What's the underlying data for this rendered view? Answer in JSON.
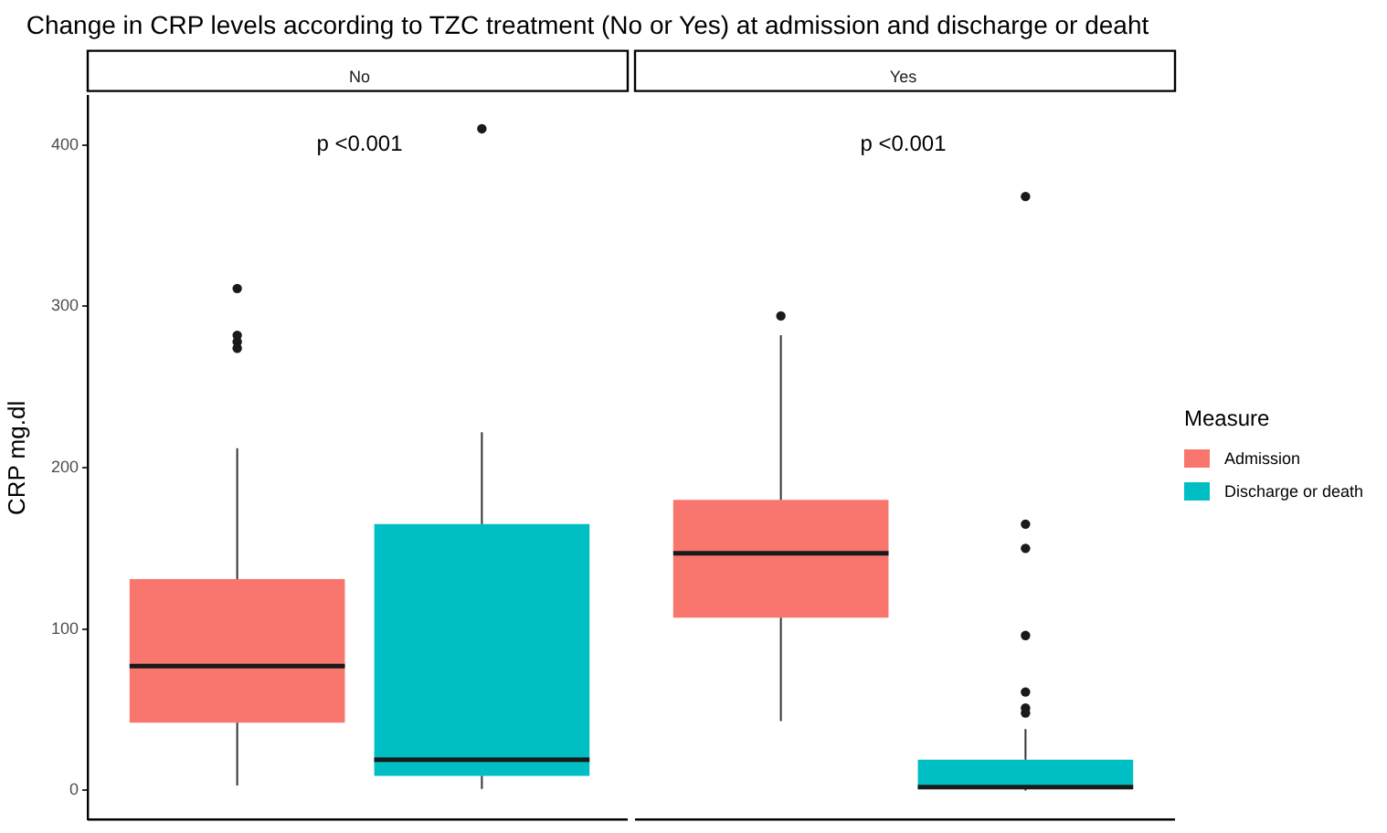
{
  "chart_data": {
    "type": "box",
    "title": "Change in CRP levels according to TZC treatment (No or Yes) at admission and discharge or deaht",
    "ylabel": "CRP mg.dl",
    "categories": [
      "No",
      "Yes"
    ],
    "ylim": [
      -18,
      430
    ],
    "yticks": [
      0,
      100,
      200,
      300,
      400
    ],
    "grid": false,
    "legend": "right",
    "legend_title": "Measure",
    "annotations": [
      "p <0.001",
      "p <0.001"
    ],
    "series": [
      {
        "name": "Admission",
        "color": "#f8766d",
        "boxes": [
          {
            "low": 3,
            "q1": 42,
            "median": 77,
            "q3": 131,
            "high": 212,
            "outliers": [
              311,
              282,
              278,
              274
            ]
          },
          {
            "low": 43,
            "q1": 107,
            "median": 147,
            "q3": 180,
            "high": 282,
            "outliers": [
              294
            ]
          }
        ]
      },
      {
        "name": "Discharge or death",
        "color": "#00bfc4",
        "boxes": [
          {
            "low": 1,
            "q1": 9,
            "median": 19,
            "q3": 165,
            "high": 222,
            "outliers": [
              410
            ]
          },
          {
            "low": 0,
            "q1": 1,
            "median": 2,
            "q3": 19,
            "high": 38,
            "outliers": [
              368,
              165,
              150,
              96,
              61,
              51,
              48
            ]
          }
        ]
      }
    ]
  }
}
